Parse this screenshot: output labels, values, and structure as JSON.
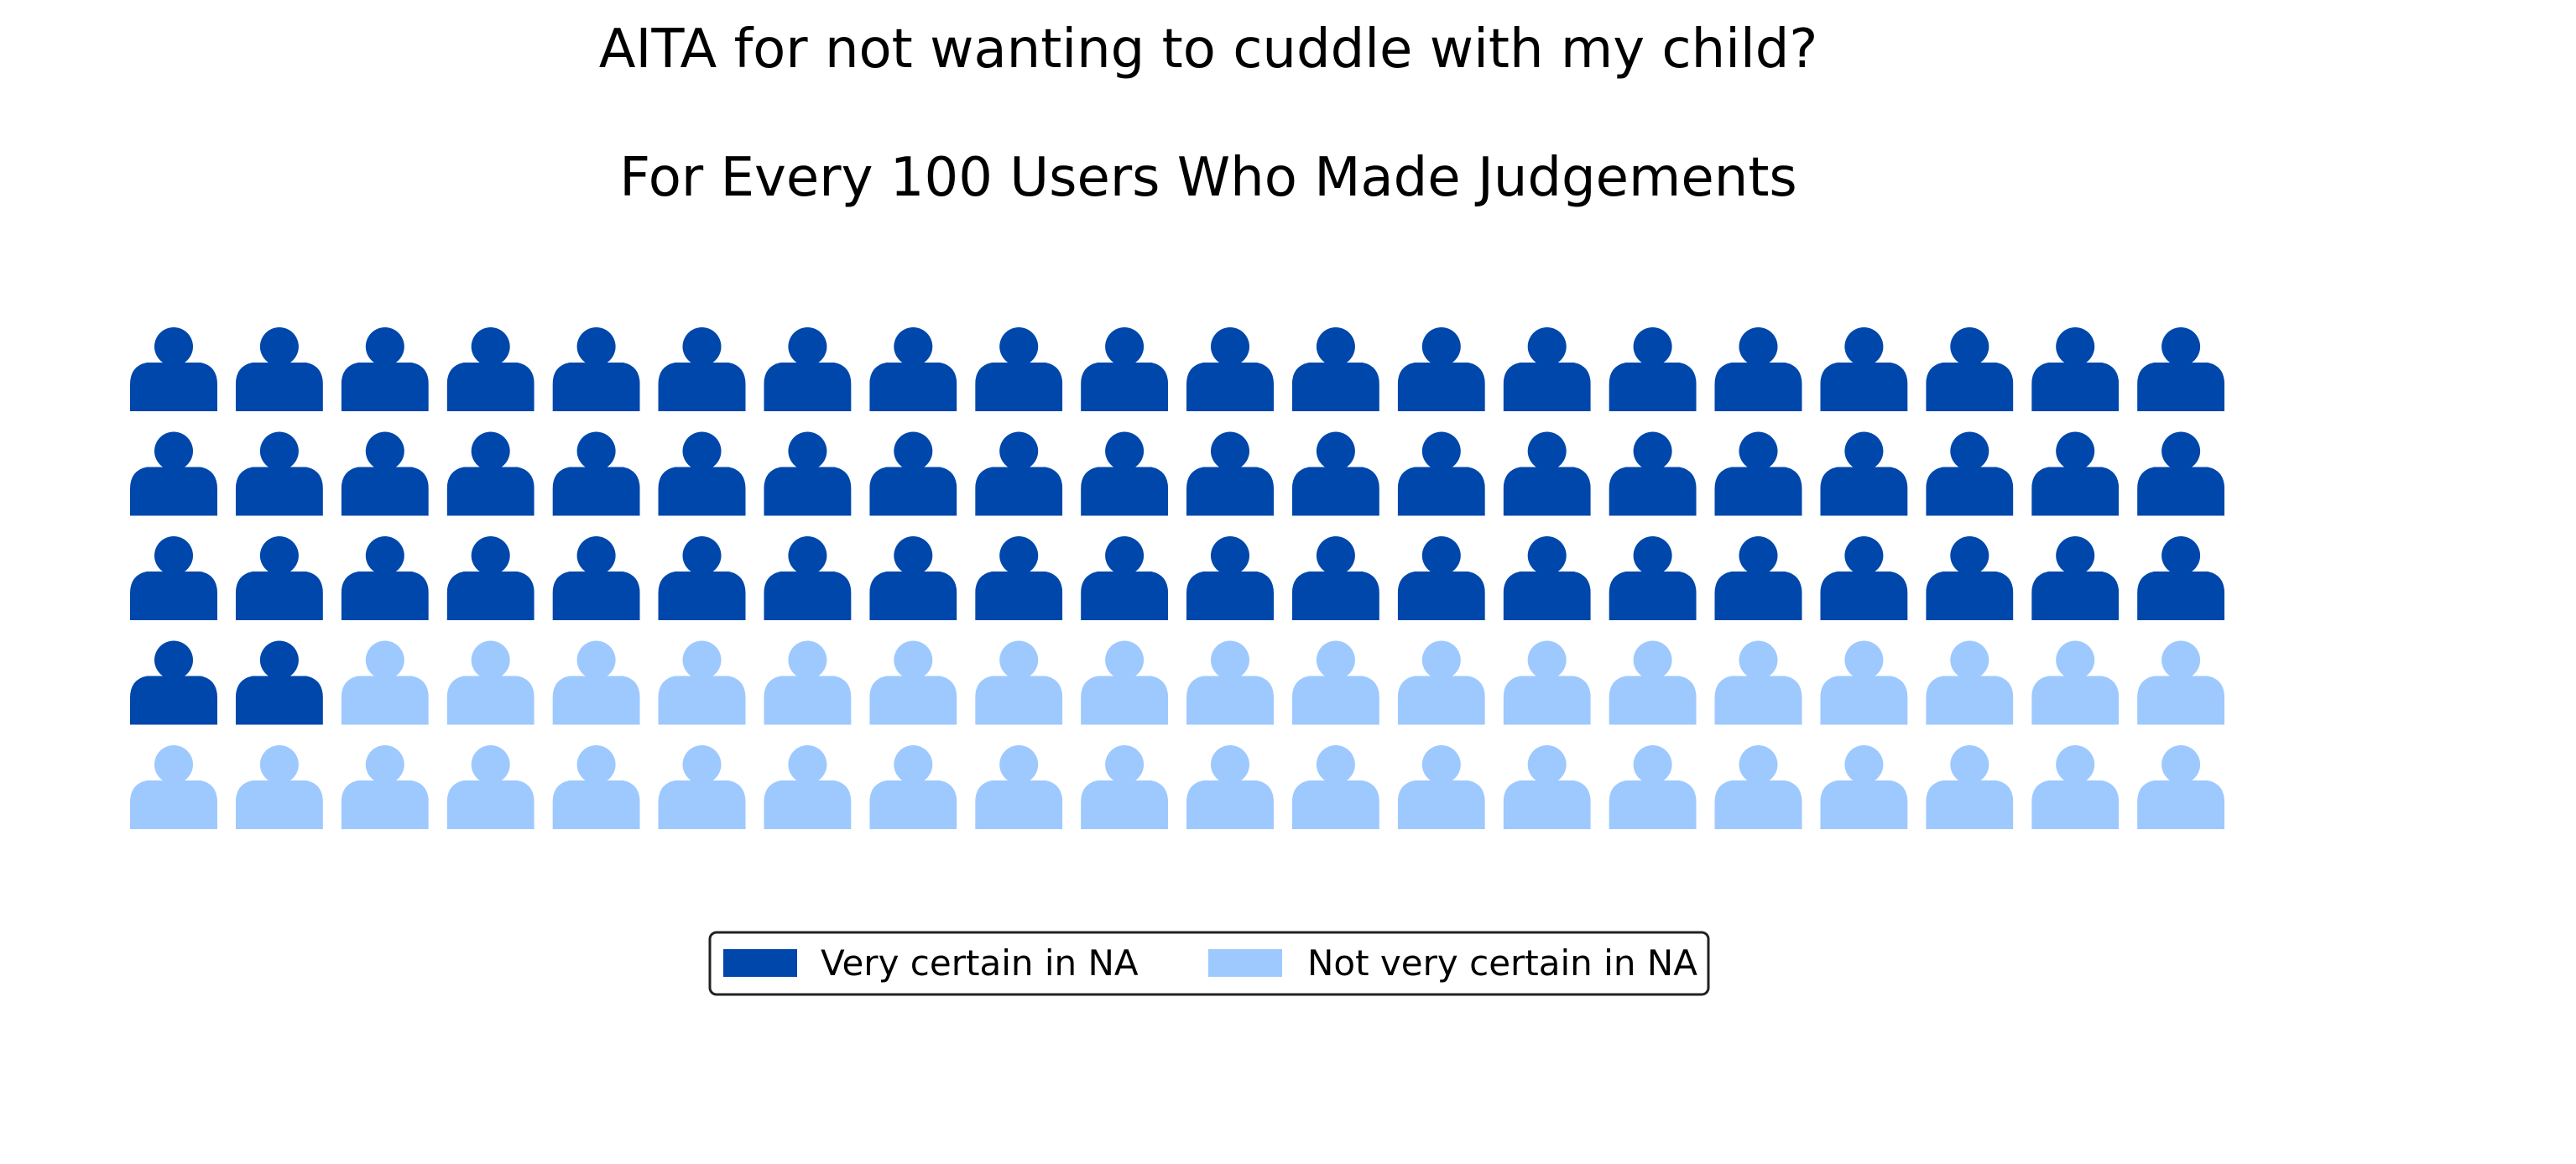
{
  "chart_data": {
    "type": "waffle",
    "title": "AITA for not wanting to cuddle with my child?",
    "subtitle": "For Every 100 Users Who Made Judgements",
    "icon": "person-icon",
    "grid": {
      "rows": 5,
      "columns": 20
    },
    "total": 100,
    "fill_order": "row-major, top-left first",
    "series": [
      {
        "name": "Very certain in NA",
        "value": 62,
        "color": "#0047AB"
      },
      {
        "name": "Not very certain in NA",
        "value": 38,
        "color": "#9EC9FF"
      }
    ],
    "legend": {
      "placement": "bottom-center",
      "entries": [
        "Very certain in NA",
        "Not very certain in NA"
      ]
    }
  }
}
